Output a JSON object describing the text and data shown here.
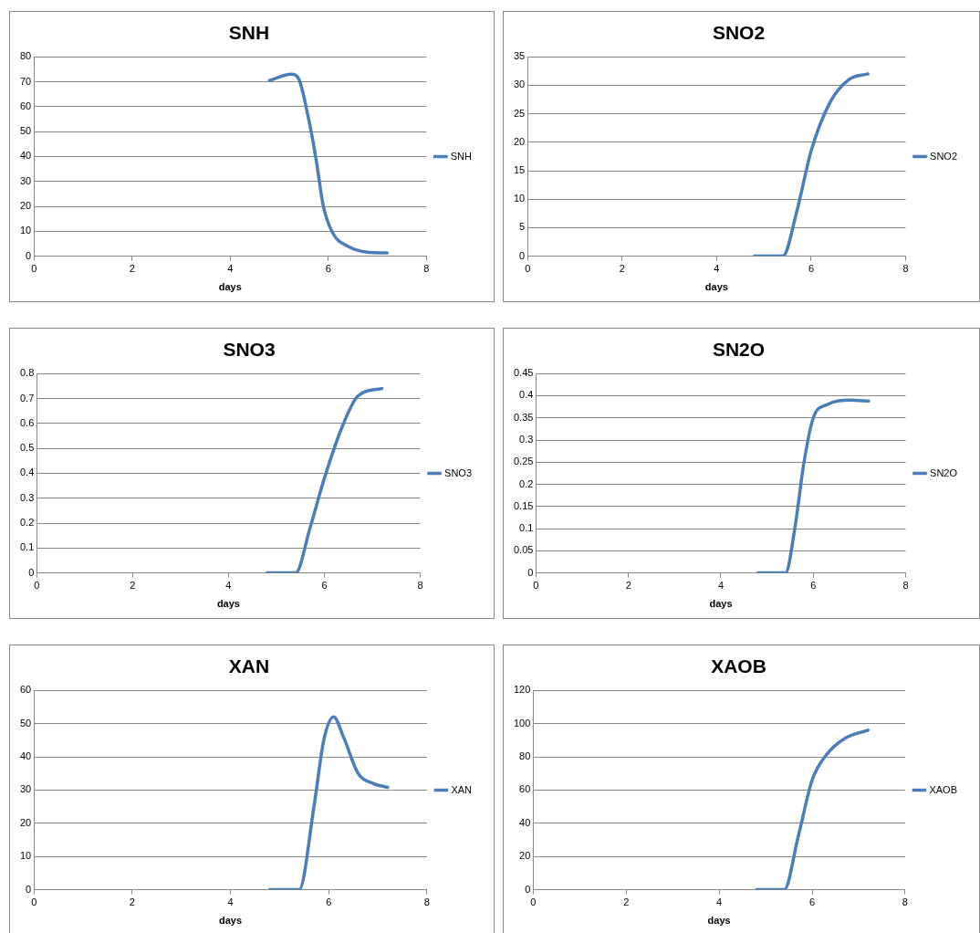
{
  "chart_data": [
    {
      "type": "line",
      "title": "SNH",
      "xlabel": "days",
      "x": [
        4.8,
        5.25,
        5.4,
        5.6,
        5.75,
        5.9,
        6.1,
        6.4,
        6.8,
        7.2
      ],
      "series": [
        {
          "name": "SNH",
          "color": "#4a7ebb",
          "values": [
            70.5,
            73,
            71,
            55,
            39,
            20,
            9,
            4,
            1.6,
            1.3
          ]
        }
      ],
      "xlim": [
        0,
        8
      ],
      "xticks": [
        0,
        2,
        4,
        6,
        8
      ],
      "ylim": [
        0,
        80
      ],
      "yticks": [
        0,
        10,
        20,
        30,
        40,
        50,
        60,
        70,
        80
      ],
      "grid": "y",
      "legend": "right",
      "marker": "none",
      "line_style": "solid"
    },
    {
      "type": "line",
      "title": "SNO2",
      "xlabel": "days",
      "x": [
        4.8,
        5.4,
        5.7,
        6.0,
        6.4,
        6.8,
        7.2
      ],
      "series": [
        {
          "name": "SNO2",
          "color": "#4a7ebb",
          "values": [
            0,
            0,
            8,
            18.5,
            27,
            31,
            32
          ]
        }
      ],
      "xlim": [
        0,
        8
      ],
      "xticks": [
        0,
        2,
        4,
        6,
        8
      ],
      "ylim": [
        0,
        35
      ],
      "yticks": [
        0,
        5,
        10,
        15,
        20,
        25,
        30,
        35
      ],
      "grid": "y",
      "legend": "right",
      "marker": "none",
      "line_style": "solid"
    },
    {
      "type": "line",
      "title": "SNO3",
      "xlabel": "days",
      "x": [
        4.8,
        5.4,
        5.7,
        6.0,
        6.4,
        6.7,
        7.2
      ],
      "series": [
        {
          "name": "SNO3",
          "color": "#4a7ebb",
          "values": [
            0,
            0,
            0.18,
            0.38,
            0.6,
            0.71,
            0.74
          ]
        }
      ],
      "xlim": [
        0,
        8
      ],
      "xticks": [
        0,
        2,
        4,
        6,
        8
      ],
      "ylim": [
        0,
        0.8
      ],
      "yticks": [
        0,
        0.1,
        0.2,
        0.3,
        0.4,
        0.5,
        0.6,
        0.7,
        0.8
      ],
      "grid": "y",
      "legend": "right",
      "marker": "none",
      "line_style": "solid"
    },
    {
      "type": "line",
      "title": "SN2O",
      "xlabel": "days",
      "x": [
        4.8,
        5.4,
        5.6,
        5.8,
        6.0,
        6.3,
        6.8,
        7.2
      ],
      "series": [
        {
          "name": "SN2O",
          "color": "#4a7ebb",
          "values": [
            0,
            0,
            0.1,
            0.25,
            0.35,
            0.38,
            0.39,
            0.388
          ]
        }
      ],
      "xlim": [
        0,
        8
      ],
      "xticks": [
        0,
        2,
        4,
        6,
        8
      ],
      "ylim": [
        0,
        0.45
      ],
      "yticks": [
        0,
        0.05,
        0.1,
        0.15,
        0.2,
        0.25,
        0.3,
        0.35,
        0.4,
        0.45
      ],
      "grid": "y",
      "legend": "right",
      "marker": "none",
      "line_style": "solid"
    },
    {
      "type": "line",
      "title": "XAN",
      "xlabel": "days",
      "x": [
        4.8,
        5.4,
        5.7,
        5.9,
        6.1,
        6.3,
        6.6,
        6.9,
        7.2
      ],
      "series": [
        {
          "name": "XAN",
          "color": "#4a7ebb",
          "values": [
            0,
            0,
            25,
            45,
            52,
            46,
            35,
            32,
            30.8
          ]
        }
      ],
      "xlim": [
        0,
        8
      ],
      "xticks": [
        0,
        2,
        4,
        6,
        8
      ],
      "ylim": [
        0,
        60
      ],
      "yticks": [
        0,
        10,
        20,
        30,
        40,
        50,
        60
      ],
      "grid": "y",
      "legend": "right",
      "marker": "none",
      "line_style": "solid"
    },
    {
      "type": "line",
      "title": "XAOB",
      "xlabel": "days",
      "x": [
        4.8,
        5.4,
        5.7,
        6.0,
        6.3,
        6.7,
        7.2
      ],
      "series": [
        {
          "name": "XAOB",
          "color": "#4a7ebb",
          "values": [
            0,
            0,
            32,
            66,
            81,
            91,
            96
          ]
        }
      ],
      "xlim": [
        0,
        8
      ],
      "xticks": [
        0,
        2,
        4,
        6,
        8
      ],
      "ylim": [
        0,
        120
      ],
      "yticks": [
        0,
        20,
        40,
        60,
        80,
        100,
        120
      ],
      "grid": "y",
      "legend": "right",
      "marker": "none",
      "line_style": "solid"
    }
  ]
}
